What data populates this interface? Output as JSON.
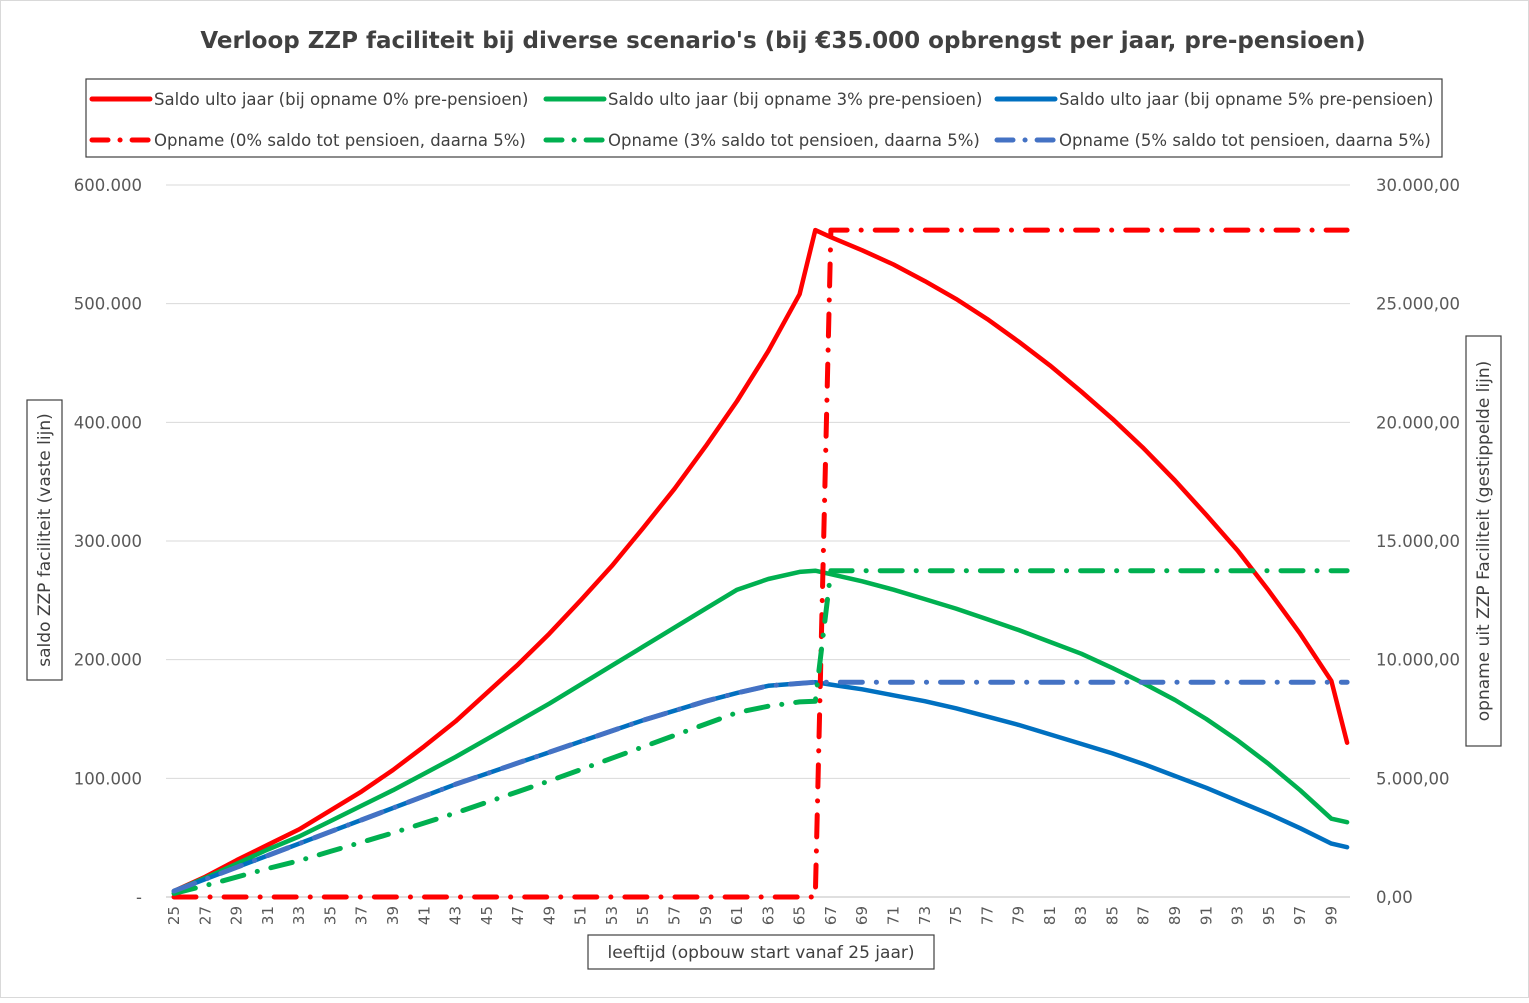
{
  "chart_data": {
    "type": "line",
    "title": "Verloop ZZP faciliteit bij diverse scenario's (bij €35.000  opbrengst per jaar, pre-pensioen)",
    "xlabel": "leeftijd (opbouw start vanaf 25 jaar)",
    "ylabel_left": "saldo ZZP faciliteit (vaste lijn)",
    "ylabel_right": "opname uit ZZP Faciliteit (gestippelde lijn)",
    "xlim": [
      25,
      100
    ],
    "ylim_left": [
      0,
      600000
    ],
    "ylim_right": [
      0,
      30000
    ],
    "x_tick_labels": [
      "25",
      "27",
      "29",
      "31",
      "33",
      "35",
      "37",
      "39",
      "41",
      "43",
      "45",
      "47",
      "49",
      "51",
      "53",
      "55",
      "57",
      "59",
      "61",
      "63",
      "65",
      "67",
      "69",
      "71",
      "73",
      "75",
      "77",
      "79",
      "81",
      "83",
      "85",
      "87",
      "89",
      "91",
      "93",
      "95",
      "97",
      "99"
    ],
    "y_left_tick_labels": [
      "-",
      "100.000",
      "200.000",
      "300.000",
      "400.000",
      "500.000",
      "600.000"
    ],
    "y_right_tick_labels": [
      "0,00",
      "5.000,00",
      "10.000,00",
      "15.000,00",
      "20.000,00",
      "25.000,00",
      "30.000,00"
    ],
    "grid": true,
    "legend_position": "top",
    "series": [
      {
        "name": "Saldo ulto jaar (bij opname 0% pre-pensioen)",
        "axis": "left",
        "style": "solid",
        "color": "#ff0000",
        "x": [
          25,
          27,
          29,
          31,
          33,
          35,
          37,
          39,
          41,
          43,
          45,
          47,
          49,
          51,
          53,
          55,
          57,
          59,
          61,
          63,
          65,
          66,
          67,
          69,
          71,
          73,
          75,
          77,
          79,
          81,
          83,
          85,
          87,
          89,
          91,
          93,
          95,
          97,
          99,
          100
        ],
        "y": [
          5000,
          17000,
          31000,
          44000,
          57000,
          73000,
          89000,
          107000,
          127000,
          148000,
          172000,
          196000,
          222000,
          250000,
          279000,
          311000,
          344000,
          380000,
          418000,
          460000,
          508000,
          562000,
          556000,
          545000,
          533000,
          519000,
          504000,
          487000,
          468000,
          448000,
          426000,
          403000,
          378000,
          351000,
          322000,
          292000,
          258000,
          222000,
          182000,
          130000
        ]
      },
      {
        "name": "Saldo ulto jaar (bij opname 3% pre-pensioen)",
        "axis": "left",
        "style": "solid",
        "color": "#00b050",
        "x": [
          25,
          27,
          29,
          31,
          33,
          35,
          37,
          39,
          41,
          43,
          45,
          47,
          49,
          51,
          53,
          55,
          57,
          59,
          61,
          63,
          65,
          66,
          67,
          69,
          71,
          73,
          75,
          77,
          79,
          81,
          83,
          85,
          87,
          89,
          91,
          93,
          95,
          97,
          99,
          100
        ],
        "y": [
          5000,
          16000,
          28000,
          40000,
          51000,
          64000,
          77000,
          90000,
          104000,
          118000,
          133000,
          148000,
          163000,
          179000,
          195000,
          211000,
          227000,
          243000,
          259000,
          268000,
          274000,
          275000,
          272000,
          266000,
          259000,
          251000,
          243000,
          234000,
          225000,
          215000,
          205000,
          193000,
          180000,
          166000,
          150000,
          132000,
          112000,
          90000,
          66000,
          63000
        ]
      },
      {
        "name": "Saldo ulto jaar (bij opname 5% pre-pensioen)",
        "axis": "left",
        "style": "solid",
        "color": "#0070c0",
        "x": [
          25,
          27,
          29,
          31,
          33,
          35,
          37,
          39,
          41,
          43,
          45,
          47,
          49,
          51,
          53,
          55,
          57,
          59,
          61,
          63,
          65,
          66,
          67,
          69,
          71,
          73,
          75,
          77,
          79,
          81,
          83,
          85,
          87,
          89,
          91,
          93,
          95,
          97,
          99,
          100
        ],
        "y": [
          5000,
          15000,
          25000,
          35000,
          45000,
          55000,
          65000,
          75000,
          85000,
          95000,
          104000,
          113000,
          122000,
          131000,
          140000,
          149000,
          157000,
          165000,
          172000,
          178000,
          180000,
          181000,
          179000,
          175000,
          170000,
          165000,
          159000,
          152000,
          145000,
          137000,
          129000,
          121000,
          112000,
          102000,
          92000,
          81000,
          70000,
          58000,
          45000,
          42000
        ]
      },
      {
        "name": "Opname (0% saldo tot pensioen, daarna 5%)",
        "axis": "right",
        "style": "dashdot",
        "color": "#ff0000",
        "x": [
          25,
          65,
          66,
          67,
          100
        ],
        "y": [
          0,
          0,
          0,
          28100,
          28100
        ]
      },
      {
        "name": "Opname (3% saldo tot pensioen, daarna 5%)",
        "axis": "right",
        "style": "dashdot",
        "color": "#00b050",
        "x": [
          25,
          27,
          29,
          31,
          33,
          35,
          37,
          39,
          41,
          43,
          45,
          47,
          49,
          51,
          53,
          55,
          57,
          59,
          61,
          63,
          65,
          66,
          67,
          100
        ],
        "y": [
          150,
          480,
          840,
          1200,
          1530,
          1920,
          2310,
          2700,
          3120,
          3540,
          3990,
          4440,
          4890,
          5370,
          5850,
          6330,
          6810,
          7290,
          7770,
          8040,
          8220,
          8250,
          13750,
          13750
        ]
      },
      {
        "name": "Opname (5% saldo tot pensioen, daarna 5%)",
        "axis": "right",
        "style": "dashdot",
        "color": "#4472c4",
        "x": [
          25,
          27,
          29,
          31,
          33,
          35,
          37,
          39,
          41,
          43,
          45,
          47,
          49,
          51,
          53,
          55,
          57,
          59,
          61,
          63,
          65,
          66,
          67,
          100
        ],
        "y": [
          250,
          750,
          1250,
          1750,
          2250,
          2750,
          3250,
          3750,
          4250,
          4750,
          5200,
          5650,
          6100,
          6550,
          7000,
          7450,
          7850,
          8250,
          8600,
          8900,
          9000,
          9050,
          9050,
          9050
        ]
      }
    ]
  }
}
